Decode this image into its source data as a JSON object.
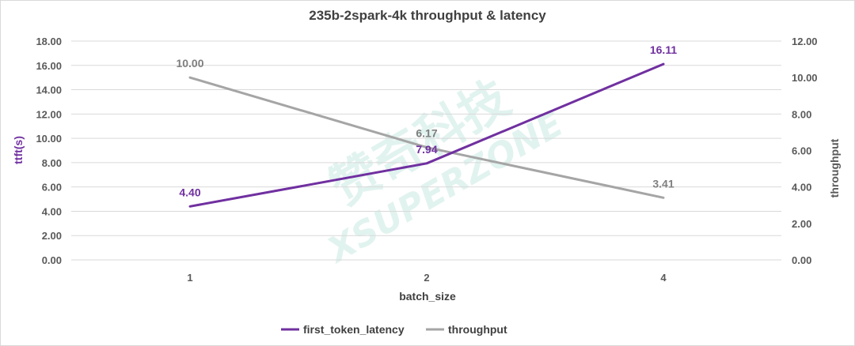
{
  "chart_data": {
    "type": "line",
    "title": "235b-2spark-4k throughput & latency",
    "xlabel": "batch_size",
    "categories": [
      "1",
      "2",
      "4"
    ],
    "y_left": {
      "label": "ttft(s)",
      "ylim": [
        0,
        18
      ],
      "ticks": [
        "0.00",
        "2.00",
        "4.00",
        "6.00",
        "8.00",
        "10.00",
        "12.00",
        "14.00",
        "16.00",
        "18.00"
      ],
      "color": "#7030a0"
    },
    "y_right": {
      "label": "throughput",
      "ylim": [
        0,
        12
      ],
      "ticks": [
        "0.00",
        "2.00",
        "4.00",
        "6.00",
        "8.00",
        "10.00",
        "12.00"
      ],
      "color": "#595959"
    },
    "series": [
      {
        "name": "first_token_latency",
        "axis": "left",
        "color": "#7030a0",
        "values": [
          4.4,
          7.94,
          16.11
        ],
        "labels": [
          "4.40",
          "7.94",
          "16.11"
        ]
      },
      {
        "name": "throughput",
        "axis": "right",
        "color": "#a5a5a5",
        "values": [
          10.0,
          6.17,
          3.41
        ],
        "labels": [
          "10.00",
          "6.17",
          "3.41"
        ]
      }
    ],
    "grid": true,
    "legend": "bottom"
  },
  "watermark": "赞奇科技 XSUPERZONE"
}
